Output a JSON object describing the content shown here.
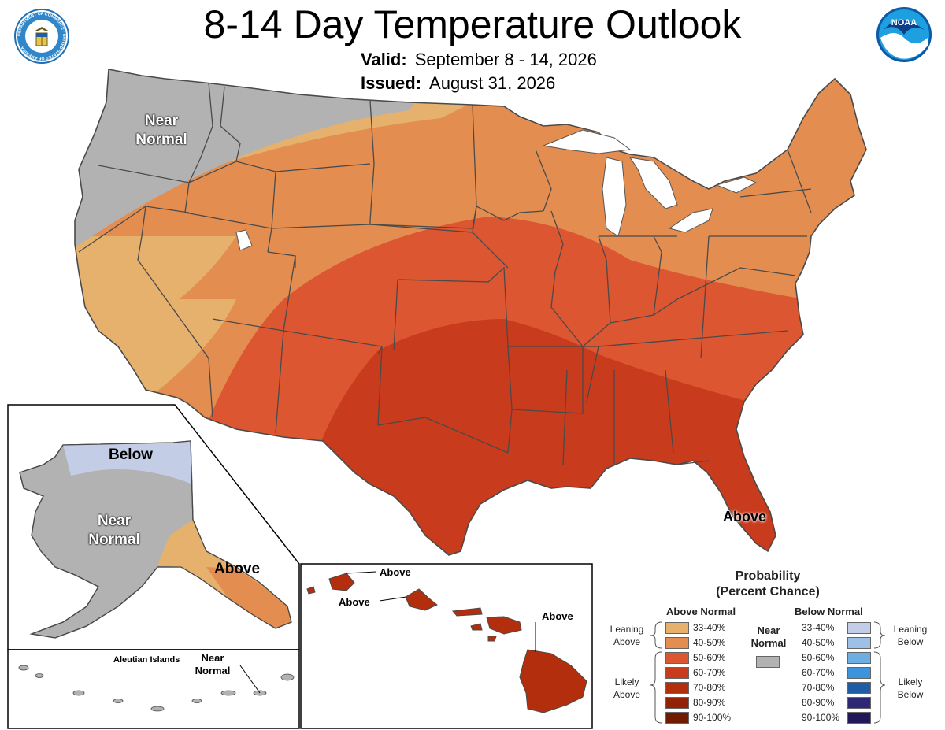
{
  "header": {
    "title": "8-14 Day Temperature Outlook",
    "valid_label": "Valid:",
    "valid_value": "September 8 - 14, 2026",
    "issued_label": "Issued:",
    "issued_value": "August 31, 2026"
  },
  "logos": {
    "left": "doc-seal-icon",
    "left_ring_text": "DEPARTMENT OF COMMERCE · UNITED STATES OF AMERICA",
    "right": "noaa-logo-icon",
    "right_text": "NOAA"
  },
  "map_labels": {
    "conus_near_normal_1": "Near",
    "conus_near_normal_2": "Normal",
    "conus_above": "Above",
    "alaska_below": "Below",
    "alaska_near_normal_1": "Near",
    "alaska_near_normal_2": "Normal",
    "alaska_above": "Above",
    "aleutian_title": "Aleutian Islands",
    "aleutian_near_1": "Near",
    "aleutian_near_2": "Normal",
    "hawaii_above_1": "Above",
    "hawaii_above_2": "Above",
    "hawaii_above_3": "Above"
  },
  "colors": {
    "near_normal": "#b2b2b2",
    "above_33_40": "#e6b16c",
    "above_40_50": "#e38e50",
    "above_50_60": "#dc5631",
    "above_60_70": "#c83b1c",
    "above_70_80": "#b32e0c",
    "above_80_90": "#922105",
    "above_90_100": "#701c00",
    "below_33_40": "#c4cde6",
    "below_40_50": "#9fc0e6",
    "below_50_60": "#6daee3",
    "below_60_70": "#3c95dc",
    "below_70_80": "#1f5ea6",
    "below_80_90": "#2e2775",
    "below_90_100": "#22195a",
    "state_lines": "#4a4a4a"
  },
  "legend": {
    "title_1": "Probability",
    "title_2": "(Percent Chance)",
    "above_header": "Above Normal",
    "below_header": "Below Normal",
    "near_label_1": "Near",
    "near_label_2": "Normal",
    "leaning_above_1": "Leaning",
    "leaning_above_2": "Above",
    "likely_above_1": "Likely",
    "likely_above_2": "Above",
    "leaning_below_1": "Leaning",
    "leaning_below_2": "Below",
    "likely_below_1": "Likely",
    "likely_below_2": "Below",
    "ranges": [
      "33-40%",
      "40-50%",
      "50-60%",
      "60-70%",
      "70-80%",
      "80-90%",
      "90-100%"
    ]
  }
}
